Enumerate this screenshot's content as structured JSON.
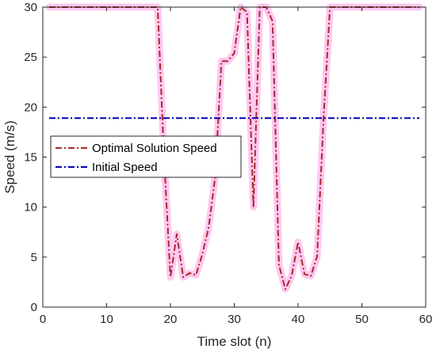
{
  "chart_data": {
    "type": "line",
    "title": "",
    "xlabel": "Time slot (n)",
    "ylabel": "Speed (m/s)",
    "xlim": [
      0,
      60
    ],
    "ylim": [
      0,
      30
    ],
    "xticks": [
      0,
      10,
      20,
      30,
      40,
      50,
      60
    ],
    "yticks": [
      0,
      5,
      10,
      15,
      20,
      25,
      30
    ],
    "grid": false,
    "legend_position": "left",
    "series": [
      {
        "name": "Optimal Solution Speed",
        "color": "#a52a2a",
        "highlight_color": "#ffc8f0",
        "line_style": "dash-dot",
        "x": [
          1,
          2,
          3,
          4,
          5,
          6,
          7,
          8,
          9,
          10,
          11,
          12,
          13,
          14,
          15,
          16,
          17,
          18,
          19,
          20,
          21,
          22,
          23,
          24,
          25,
          26,
          27,
          28,
          29,
          30,
          31,
          32,
          33,
          34,
          35,
          36,
          37,
          38,
          39,
          40,
          41,
          42,
          43,
          44,
          45,
          46,
          47,
          48,
          49,
          50,
          51,
          52,
          53,
          54,
          55,
          56,
          57,
          58,
          59
        ],
        "y": [
          30,
          30,
          30,
          30,
          30,
          30,
          30,
          30,
          30,
          30,
          30,
          30,
          30,
          30,
          30,
          30,
          30,
          30,
          15,
          3,
          7.3,
          3,
          3.4,
          3.2,
          5.3,
          8,
          13,
          24.6,
          24.6,
          25.4,
          30,
          29.5,
          10,
          30,
          30,
          28.6,
          4.2,
          1.8,
          3.1,
          6.5,
          3.3,
          3.1,
          5.1,
          19,
          30,
          30,
          30,
          30,
          30,
          30,
          30,
          30,
          30,
          30,
          30,
          30,
          30,
          30,
          30
        ]
      },
      {
        "name": "Initial Speed",
        "color": "#0000b4",
        "line_style": "dash-dot",
        "x": [
          1,
          59
        ],
        "y": [
          18.9,
          18.9
        ]
      }
    ]
  }
}
